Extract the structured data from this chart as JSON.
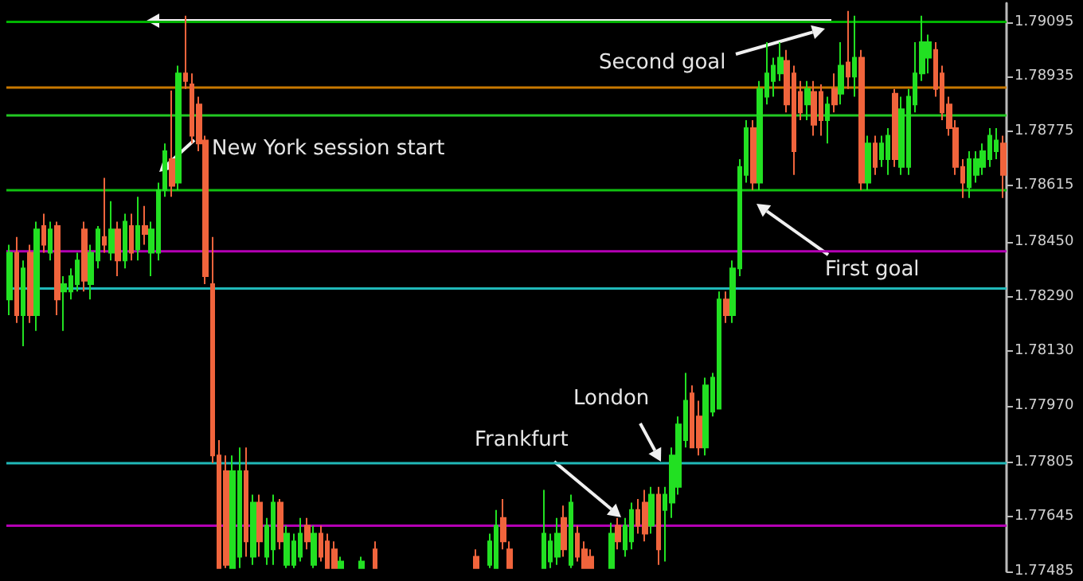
{
  "chart_data": {
    "type": "candlestick",
    "categories": [
      null,
      null,
      null,
      null,
      null,
      null,
      null,
      null,
      null,
      null,
      null,
      null,
      null,
      null,
      null,
      null,
      null,
      null,
      null,
      null,
      null,
      null,
      null,
      null,
      null,
      null,
      null,
      null,
      null,
      null,
      null,
      null,
      null,
      null,
      null,
      null,
      null,
      null,
      null,
      null,
      null,
      null,
      null,
      null,
      null,
      null,
      null,
      null,
      null,
      null,
      null,
      null,
      null,
      null,
      null,
      null,
      null,
      null,
      null,
      null,
      null,
      null,
      null,
      null,
      null,
      null,
      null,
      null,
      null,
      null,
      null,
      null,
      null,
      null,
      null,
      null,
      null,
      null,
      null,
      null,
      null,
      null,
      null,
      null,
      null,
      null,
      null,
      null,
      null,
      null,
      null,
      null,
      null,
      null,
      null,
      null,
      null,
      null,
      null,
      null,
      null,
      null,
      null,
      null,
      null,
      null,
      null,
      null,
      null,
      null,
      null,
      null,
      null,
      null,
      null,
      null,
      null,
      null,
      null,
      null,
      null,
      null,
      null,
      null,
      null,
      null,
      null,
      null,
      null,
      null,
      null,
      null,
      null,
      null,
      null,
      null,
      null,
      null,
      null,
      null,
      null,
      null,
      null,
      null,
      null,
      null,
      null,
      null
    ],
    "colors": [
      "#22e022",
      "#f0643c",
      "#22e022",
      "#f0643c",
      "#22e022",
      "#f0643c",
      "#22e022",
      "#f0643c",
      "#22e022",
      "#22e022",
      "#22e022",
      "#f0643c",
      "#22e022",
      "#22e022",
      "#f0643c",
      "#22e022",
      "#f0643c",
      "#22e022",
      "#f0643c",
      "#22e022",
      "#f0643c",
      "#22e022",
      "#22e022",
      "#22e022",
      "#f0643c",
      "#22e022",
      "#f0643c",
      "#f0643c",
      "#f0643c",
      "#f0643c",
      "#f0643c",
      "#f0643c",
      "#f0643c",
      "#22e022",
      "#22e022",
      "#f0643c",
      "#22e022",
      "#f0643c",
      "#22e022",
      "#22e022",
      "#f0643c",
      "#22e022",
      "#22e022",
      "#22e022",
      "#f0643c",
      "#22e022",
      "#f0643c",
      "#f0643c",
      "#f0643c",
      "#22e022",
      null,
      null,
      "#22e022",
      null,
      "#f0643c",
      null,
      null,
      null,
      null,
      null,
      null,
      null,
      null,
      null,
      null,
      null,
      null,
      null,
      null,
      "#f0643c",
      null,
      "#22e022",
      "#22e022",
      "#f0643c",
      "#f0643c",
      null,
      null,
      null,
      null,
      "#22e022",
      "#22e022",
      "#22e022",
      "#f0643c",
      "#22e022",
      "#f0643c",
      "#f0643c",
      "#f0643c",
      null,
      null,
      "#22e022",
      "#f0643c",
      "#22e022",
      "#22e022",
      "#f0643c",
      "#f0643c",
      "#22e022",
      "#f0643c",
      "#22e022",
      "#22e022",
      "#22e022",
      "#22e022",
      "#f0643c",
      "#f0643c",
      "#22e022",
      "#22e022",
      "#22e022",
      "#f0643c",
      "#22e022",
      "#22e022",
      "#22e022",
      "#f0643c",
      "#22e022",
      "#22e022",
      "#22e022",
      "#22e022",
      "#f0643c",
      "#f0643c",
      "#f0643c",
      "#22e022",
      "#f0643c",
      "#f0643c",
      "#22e022",
      "#f0643c",
      "#22e022",
      "#f0643c",
      "#22e022",
      "#f0643c",
      "#22e022",
      "#f0643c",
      "#22e022",
      "#22e022",
      "#f0643c",
      "#22e022",
      "#22e022",
      "#22e022",
      "#22e022",
      "#22e022",
      "#f0643c",
      "#f0643c",
      "#f0643c",
      "#f0643c",
      "#f0643c",
      "#22e022",
      "#22e022",
      "#22e022",
      "#22e022",
      "#22e022",
      "#f0643c"
    ],
    "ohlc": [
      [
        1.78282,
        1.78442,
        1.78236,
        1.78419
      ],
      [
        1.78419,
        1.78465,
        1.78213,
        1.78236
      ],
      [
        1.78236,
        1.78396,
        1.78145,
        1.78373
      ],
      [
        1.78419,
        1.78442,
        1.78213,
        1.78236
      ],
      [
        1.78236,
        1.7851,
        1.7819,
        1.78487
      ],
      [
        1.78497,
        1.78533,
        1.78419,
        1.78442
      ],
      [
        1.78419,
        1.7851,
        1.78396,
        1.78487
      ],
      [
        1.78497,
        1.7851,
        1.78236,
        1.78282
      ],
      [
        1.78305,
        1.7835,
        1.7819,
        1.78327
      ],
      [
        1.78305,
        1.78373,
        1.78282,
        1.7835
      ],
      [
        1.78327,
        1.78419,
        1.78305,
        1.78396
      ],
      [
        1.78487,
        1.7851,
        1.78305,
        1.78337
      ],
      [
        1.78327,
        1.78442,
        1.78282,
        1.78419
      ],
      [
        1.78396,
        1.78497,
        1.78373,
        1.78487
      ],
      [
        1.78465,
        1.78638,
        1.78419,
        1.78442
      ],
      [
        1.78419,
        1.7857,
        1.78396,
        1.78487
      ],
      [
        1.78487,
        1.7851,
        1.7835,
        1.78396
      ],
      [
        1.78396,
        1.78533,
        1.78373,
        1.7851
      ],
      [
        1.78497,
        1.78533,
        1.78396,
        1.78419
      ],
      [
        1.78428,
        1.78583,
        1.78396,
        1.78497
      ],
      [
        1.78497,
        1.78556,
        1.78442,
        1.78474
      ],
      [
        1.78419,
        1.7851,
        1.7835,
        1.78487
      ],
      [
        1.78419,
        1.78624,
        1.78396,
        1.78602
      ],
      [
        1.78602,
        1.78739,
        1.78583,
        1.78716
      ],
      [
        1.78693,
        1.78894,
        1.78583,
        1.78615
      ],
      [
        1.78624,
        1.78967,
        1.78602,
        1.78944
      ],
      [
        1.78944,
        1.79113,
        1.78899,
        1.78922
      ],
      [
        1.78912,
        1.78944,
        1.78739,
        1.78762
      ],
      [
        1.78853,
        1.78876,
        1.78716,
        1.78739
      ],
      [
        1.78748,
        1.78762,
        1.78327,
        1.7835
      ],
      [
        1.78327,
        1.78465,
        1.77802,
        1.77825
      ],
      [
        1.77825,
        1.7787,
        1.77495,
        1.77495
      ],
      [
        1.77779,
        1.77825,
        1.77495,
        1.77504
      ],
      [
        1.77495,
        1.77825,
        1.77495,
        1.77779
      ],
      [
        1.77528,
        1.77848,
        1.77495,
        1.77779
      ],
      [
        1.77779,
        1.77848,
        1.77528,
        1.77573
      ],
      [
        1.77528,
        1.7771,
        1.77504,
        1.77687
      ],
      [
        1.77687,
        1.7771,
        1.77528,
        1.77573
      ],
      [
        1.77528,
        1.77642,
        1.77504,
        1.77619
      ],
      [
        1.7755,
        1.7771,
        1.77504,
        1.77687
      ],
      [
        1.77687,
        1.77697,
        1.7755,
        1.77573
      ],
      [
        1.77504,
        1.77619,
        1.77495,
        1.77596
      ],
      [
        1.77504,
        1.77596,
        1.77495,
        1.77573
      ],
      [
        1.77528,
        1.77642,
        1.77514,
        1.77596
      ],
      [
        1.77619,
        1.77642,
        1.7755,
        1.77573
      ],
      [
        1.77504,
        1.77619,
        1.77495,
        1.77596
      ],
      [
        1.77596,
        1.77619,
        1.77514,
        1.77528
      ],
      [
        1.77573,
        1.77596,
        1.77495,
        1.77495
      ],
      [
        1.7755,
        1.77573,
        1.77495,
        1.77495
      ],
      [
        1.77495,
        1.77528,
        1.77495,
        1.77514
      ],
      null,
      null,
      [
        1.77495,
        1.77528,
        1.77495,
        1.77514
      ],
      null,
      [
        1.7755,
        1.77573,
        1.77495,
        1.77495
      ],
      null,
      null,
      null,
      null,
      null,
      null,
      null,
      null,
      null,
      null,
      null,
      null,
      null,
      null,
      [
        1.77528,
        1.7755,
        1.77495,
        1.77495
      ],
      null,
      [
        1.77504,
        1.77596,
        1.77495,
        1.77573
      ],
      [
        1.77495,
        1.77665,
        1.77495,
        1.77619
      ],
      [
        1.77642,
        1.77697,
        1.7755,
        1.77573
      ],
      [
        1.7755,
        1.77573,
        1.77495,
        1.77495
      ],
      null,
      null,
      null,
      null,
      [
        1.77495,
        1.77724,
        1.77495,
        1.77596
      ],
      [
        1.77514,
        1.77596,
        1.77495,
        1.77573
      ],
      [
        1.77528,
        1.77642,
        1.77504,
        1.77596
      ],
      [
        1.77642,
        1.77678,
        1.77528,
        1.7755
      ],
      [
        1.77504,
        1.7771,
        1.77495,
        1.77687
      ],
      [
        1.77596,
        1.77619,
        1.77514,
        1.77528
      ],
      [
        1.7755,
        1.77573,
        1.77495,
        1.77495
      ],
      [
        1.77528,
        1.7755,
        1.77495,
        1.77495
      ],
      null,
      null,
      [
        1.77495,
        1.77628,
        1.77495,
        1.77596
      ],
      [
        1.77619,
        1.77642,
        1.7755,
        1.77573
      ],
      [
        1.7755,
        1.77642,
        1.77528,
        1.77619
      ],
      [
        1.77573,
        1.77687,
        1.7755,
        1.77665
      ],
      [
        1.77665,
        1.77697,
        1.77596,
        1.77619
      ],
      [
        1.77687,
        1.77724,
        1.77573,
        1.77596
      ],
      [
        1.77619,
        1.77733,
        1.77596,
        1.7771
      ],
      [
        1.7771,
        1.77733,
        1.77504,
        1.7755
      ],
      [
        1.77665,
        1.77733,
        1.77514,
        1.7771
      ],
      [
        1.77687,
        1.77848,
        1.77642,
        1.77825
      ],
      [
        1.77733,
        1.77939,
        1.7771,
        1.77916
      ],
      [
        1.7787,
        1.78067,
        1.77848,
        1.77985
      ],
      [
        1.78007,
        1.7803,
        1.77848,
        1.77848
      ],
      [
        1.77939,
        1.77985,
        1.77825,
        1.77848
      ],
      [
        1.77848,
        1.78053,
        1.77825,
        1.7803
      ],
      [
        1.77953,
        1.78067,
        1.77939,
        1.78053
      ],
      [
        1.77962,
        1.78305,
        1.77962,
        1.78282
      ],
      [
        1.78282,
        1.78305,
        1.78213,
        1.78236
      ],
      [
        1.78236,
        1.78396,
        1.78213,
        1.78373
      ],
      [
        1.78373,
        1.78693,
        1.7835,
        1.7867
      ],
      [
        1.78647,
        1.78807,
        1.78624,
        1.78784
      ],
      [
        1.78784,
        1.78807,
        1.78602,
        1.78624
      ],
      [
        1.78624,
        1.78922,
        1.78602,
        1.78899
      ],
      [
        1.78876,
        1.79036,
        1.78853,
        1.78944
      ],
      [
        1.78922,
        1.7899,
        1.78876,
        1.78967
      ],
      [
        1.78944,
        1.79036,
        1.78922,
        1.7899
      ],
      [
        1.78981,
        1.79013,
        1.7883,
        1.78853
      ],
      [
        1.78944,
        1.78967,
        1.78647,
        1.78716
      ],
      [
        1.7889,
        1.78922,
        1.78807,
        1.7883
      ],
      [
        1.78853,
        1.78922,
        1.78807,
        1.78899
      ],
      [
        1.7889,
        1.78922,
        1.78762,
        1.78794
      ],
      [
        1.7889,
        1.78912,
        1.78762,
        1.78807
      ],
      [
        1.78807,
        1.78876,
        1.78739,
        1.78853
      ],
      [
        1.78899,
        1.78944,
        1.7883,
        1.78853
      ],
      [
        1.78885,
        1.79036,
        1.78853,
        1.78967
      ],
      [
        1.78976,
        1.79127,
        1.78899,
        1.78935
      ],
      [
        1.78935,
        1.79113,
        1.78876,
        1.7899
      ],
      [
        1.7899,
        1.79013,
        1.78602,
        1.78624
      ],
      [
        1.78624,
        1.78762,
        1.78602,
        1.78739
      ],
      [
        1.78739,
        1.78762,
        1.78647,
        1.7867
      ],
      [
        1.78693,
        1.78762,
        1.7867,
        1.78739
      ],
      [
        1.78693,
        1.78784,
        1.78647,
        1.78762
      ],
      [
        1.78885,
        1.78899,
        1.7867,
        1.78693
      ],
      [
        1.7867,
        1.78876,
        1.78647,
        1.78839
      ],
      [
        1.7867,
        1.78899,
        1.78647,
        1.78876
      ],
      [
        1.78853,
        1.79036,
        1.7883,
        1.78944
      ],
      [
        1.78944,
        1.79113,
        1.78922,
        1.79036
      ],
      [
        1.7899,
        1.79058,
        1.78944,
        1.79036
      ],
      [
        1.79013,
        1.79036,
        1.78876,
        1.78899
      ],
      [
        1.78944,
        1.78967,
        1.78807,
        1.7883
      ],
      [
        1.78853,
        1.78876,
        1.78762,
        1.78784
      ],
      [
        1.78784,
        1.78807,
        1.78647,
        1.7867
      ],
      [
        1.7867,
        1.78693,
        1.78579,
        1.78624
      ],
      [
        1.78611,
        1.78716,
        1.78579,
        1.78693
      ],
      [
        1.78647,
        1.78716,
        1.78624,
        1.78693
      ],
      [
        1.7867,
        1.78739,
        1.78647,
        1.78716
      ],
      [
        1.78693,
        1.78784,
        1.7867,
        1.78762
      ],
      [
        1.78716,
        1.78784,
        1.78693,
        1.78748
      ],
      [
        1.78739,
        1.78762,
        1.78579,
        1.78647
      ]
    ],
    "ylim": [
      1.77485,
      1.7915
    ],
    "yticks": [
      1.77485,
      1.77645,
      {
        "value": 1.77805,
        "label": "1.77805"
      },
      {
        "value": 1.7797,
        "label": "1.77970"
      },
      {
        "value": 1.7813,
        "label": "1.78130"
      },
      {
        "value": 1.7829,
        "label": "1.78290"
      },
      {
        "value": 1.7845,
        "label": "1.78450"
      },
      1.78615,
      1.78775,
      1.78935,
      1.79095
    ],
    "ref_lines": [
      {
        "axis": "y",
        "value": 1.79095,
        "color": "#00b400"
      },
      {
        "axis": "y",
        "value": 1.78903,
        "color": "#c87800"
      },
      {
        "axis": "y",
        "value": 1.78821,
        "color": "#22c822"
      },
      {
        "axis": "y",
        "value": 1.78602,
        "color": "#11c011"
      },
      {
        "axis": "y",
        "value": 1.78423,
        "color": "#b400b4"
      },
      {
        "axis": "y",
        "value": 1.78314,
        "color": "#20b8b8"
      },
      {
        "axis": "y",
        "value": 1.77802,
        "color": "#20b8b8"
      },
      {
        "axis": "y",
        "value": 1.77619,
        "color": "#b400b4"
      }
    ],
    "annotations": [
      "Second goal",
      "New York session start",
      "First goal",
      "London",
      "Frankfurt"
    ],
    "grid": false,
    "tick_labels": "y"
  }
}
